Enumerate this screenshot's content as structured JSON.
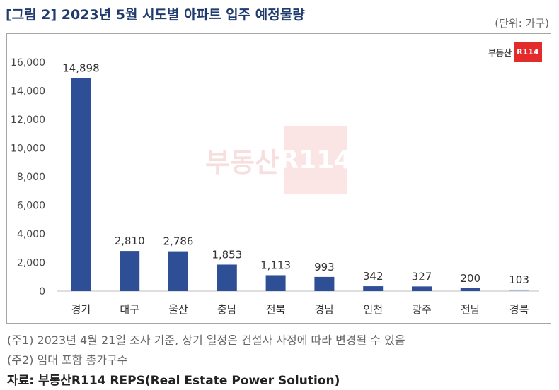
{
  "title": "[그림 2] 2023년 5월 시도별 아파트 입주 예정물량",
  "unit_label": "(단위: 가구)",
  "logo": {
    "text": "부동산",
    "badge": "R114"
  },
  "notes": [
    "(주1) 2023년 4월 21일 조사 기준, 상기 일정은 건설사 사정에 따라 변경될 수 있음",
    "(주2) 임대 포함 총가구수"
  ],
  "source": "자료: 부동산R114 REPS(Real Estate Power Solution)",
  "colors": {
    "bar": "#2e4f95",
    "last_bar": "#a9c0dc",
    "title": "#1f3b6e",
    "brand_red": "#e32b2b"
  },
  "chart_data": {
    "type": "bar",
    "categories": [
      "경기",
      "대구",
      "울산",
      "충남",
      "전북",
      "경남",
      "인천",
      "광주",
      "전남",
      "경북"
    ],
    "values": [
      14898,
      2810,
      2786,
      1853,
      1113,
      993,
      342,
      327,
      200,
      103
    ],
    "value_labels": [
      "14,898",
      "2,810",
      "2,786",
      "1,853",
      "1,113",
      "993",
      "342",
      "327",
      "200",
      "103"
    ],
    "y_ticks": [
      0,
      2000,
      4000,
      6000,
      8000,
      10000,
      12000,
      14000,
      16000
    ],
    "y_tick_labels": [
      "0",
      "2,000",
      "4,000",
      "6,000",
      "8,000",
      "10,000",
      "12,000",
      "14,000",
      "16,000"
    ],
    "ylim": [
      0,
      16000
    ],
    "grid": false
  }
}
